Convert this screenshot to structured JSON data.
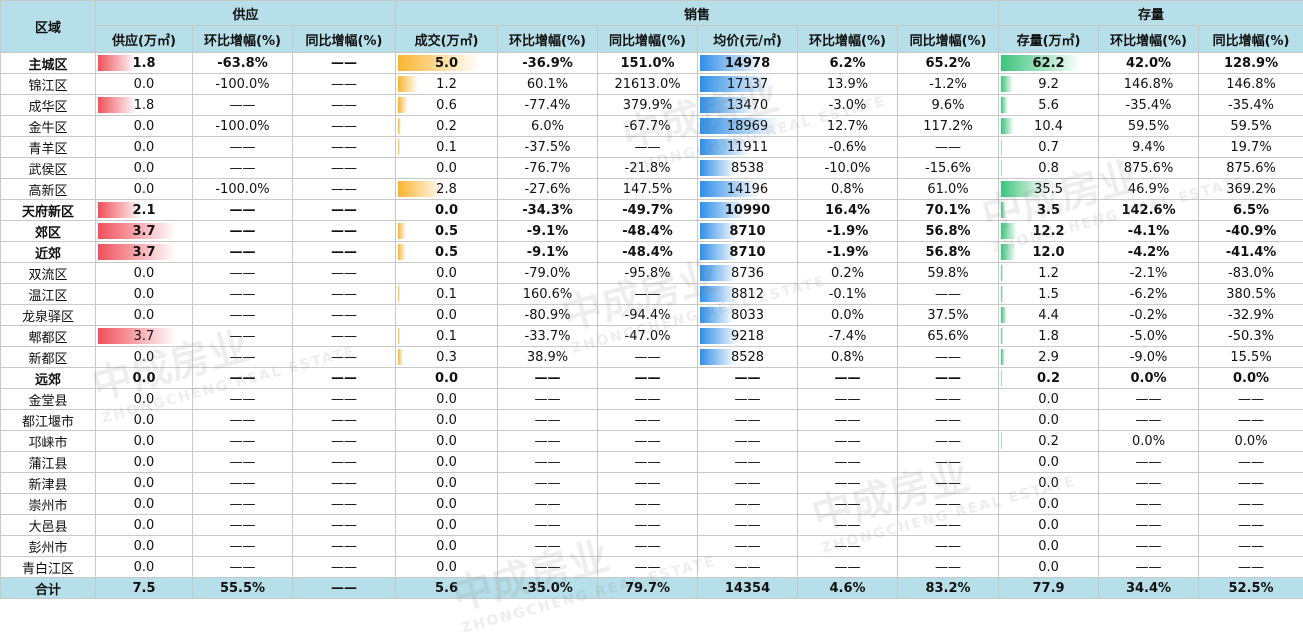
{
  "header": {
    "region": "区域",
    "groups": [
      "供应",
      "销售",
      "存量"
    ],
    "columns": [
      "供应(万㎡)",
      "环比增幅(%)",
      "同比增幅(%)",
      "成交(万㎡)",
      "环比增幅(%)",
      "同比增幅(%)",
      "均价(元/㎡)",
      "环比增幅(%)",
      "同比增幅(%)",
      "存量(万㎡)",
      "环比增幅(%)",
      "同比增幅(%)"
    ]
  },
  "watermark": [
    "中成房业",
    "ZHONGCHENG REAL ESTATE"
  ],
  "data_bars": [
    {
      "column": 1,
      "color": "#f0505a"
    },
    {
      "column": 4,
      "color": "#f9b530"
    },
    {
      "column": 7,
      "color": "#2f8fe8"
    },
    {
      "column": 10,
      "color": "#3cc47c"
    }
  ],
  "rows": [
    {
      "bold": true,
      "cells": [
        "主城区",
        "1.8",
        "-63.8%",
        "——",
        "5.0",
        "-36.9%",
        "151.0%",
        "14978",
        "6.2%",
        "65.2%",
        "62.2",
        "42.0%",
        "128.9%"
      ]
    },
    {
      "cells": [
        "锦江区",
        "0.0",
        "-100.0%",
        "——",
        "1.2",
        "60.1%",
        "21613.0%",
        "17137",
        "13.9%",
        "-1.2%",
        "9.2",
        "146.8%",
        "146.8%"
      ]
    },
    {
      "cells": [
        "成华区",
        "1.8",
        "——",
        "——",
        "0.6",
        "-77.4%",
        "379.9%",
        "13470",
        "-3.0%",
        "9.6%",
        "5.6",
        "-35.4%",
        "-35.4%"
      ]
    },
    {
      "cells": [
        "金牛区",
        "0.0",
        "-100.0%",
        "——",
        "0.2",
        "6.0%",
        "-67.7%",
        "18969",
        "12.7%",
        "117.2%",
        "10.4",
        "59.5%",
        "59.5%"
      ]
    },
    {
      "cells": [
        "青羊区",
        "0.0",
        "——",
        "——",
        "0.1",
        "-37.5%",
        "——",
        "11911",
        "-0.6%",
        "——",
        "0.7",
        "9.4%",
        "19.7%"
      ]
    },
    {
      "cells": [
        "武侯区",
        "0.0",
        "——",
        "——",
        "0.0",
        "-76.7%",
        "-21.8%",
        "8538",
        "-10.0%",
        "-15.6%",
        "0.8",
        "875.6%",
        "875.6%"
      ]
    },
    {
      "cells": [
        "高新区",
        "0.0",
        "-100.0%",
        "——",
        "2.8",
        "-27.6%",
        "147.5%",
        "14196",
        "0.8%",
        "61.0%",
        "35.5",
        "46.9%",
        "369.2%"
      ]
    },
    {
      "bold": true,
      "cells": [
        "天府新区",
        "2.1",
        "——",
        "——",
        "0.0",
        "-34.3%",
        "-49.7%",
        "10990",
        "16.4%",
        "70.1%",
        "3.5",
        "142.6%",
        "6.5%"
      ]
    },
    {
      "bold": true,
      "cells": [
        "郊区",
        "3.7",
        "——",
        "——",
        "0.5",
        "-9.1%",
        "-48.4%",
        "8710",
        "-1.9%",
        "56.8%",
        "12.2",
        "-4.1%",
        "-40.9%"
      ]
    },
    {
      "bold": true,
      "cells": [
        "近郊",
        "3.7",
        "——",
        "——",
        "0.5",
        "-9.1%",
        "-48.4%",
        "8710",
        "-1.9%",
        "56.8%",
        "12.0",
        "-4.2%",
        "-41.4%"
      ]
    },
    {
      "cells": [
        "双流区",
        "0.0",
        "——",
        "——",
        "0.0",
        "-79.0%",
        "-95.8%",
        "8736",
        "0.2%",
        "59.8%",
        "1.2",
        "-2.1%",
        "-83.0%"
      ]
    },
    {
      "cells": [
        "温江区",
        "0.0",
        "——",
        "——",
        "0.1",
        "160.6%",
        "——",
        "8812",
        "-0.1%",
        "——",
        "1.5",
        "-6.2%",
        "380.5%"
      ]
    },
    {
      "cells": [
        "龙泉驿区",
        "0.0",
        "——",
        "——",
        "0.0",
        "-80.9%",
        "-94.4%",
        "8033",
        "0.0%",
        "37.5%",
        "4.4",
        "-0.2%",
        "-32.9%"
      ]
    },
    {
      "cells": [
        "郫都区",
        "3.7",
        "——",
        "——",
        "0.1",
        "-33.7%",
        "-47.0%",
        "9218",
        "-7.4%",
        "65.6%",
        "1.8",
        "-5.0%",
        "-50.3%"
      ]
    },
    {
      "cells": [
        "新都区",
        "0.0",
        "——",
        "——",
        "0.3",
        "38.9%",
        "——",
        "8528",
        "0.8%",
        "——",
        "2.9",
        "-9.0%",
        "15.5%"
      ]
    },
    {
      "bold": true,
      "cells": [
        "远郊",
        "0.0",
        "——",
        "——",
        "0.0",
        "——",
        "——",
        "——",
        "——",
        "——",
        "0.2",
        "0.0%",
        "0.0%"
      ]
    },
    {
      "cells": [
        "金堂县",
        "0.0",
        "——",
        "——",
        "0.0",
        "——",
        "——",
        "——",
        "——",
        "——",
        "0.0",
        "——",
        "——"
      ]
    },
    {
      "cells": [
        "都江堰市",
        "0.0",
        "——",
        "——",
        "0.0",
        "——",
        "——",
        "——",
        "——",
        "——",
        "0.0",
        "——",
        "——"
      ]
    },
    {
      "cells": [
        "邛崃市",
        "0.0",
        "——",
        "——",
        "0.0",
        "——",
        "——",
        "——",
        "——",
        "——",
        "0.2",
        "0.0%",
        "0.0%"
      ]
    },
    {
      "cells": [
        "蒲江县",
        "0.0",
        "——",
        "——",
        "0.0",
        "——",
        "——",
        "——",
        "——",
        "——",
        "0.0",
        "——",
        "——"
      ]
    },
    {
      "cells": [
        "新津县",
        "0.0",
        "——",
        "——",
        "0.0",
        "——",
        "——",
        "——",
        "——",
        "——",
        "0.0",
        "——",
        "——"
      ]
    },
    {
      "cells": [
        "崇州市",
        "0.0",
        "——",
        "——",
        "0.0",
        "——",
        "——",
        "——",
        "——",
        "——",
        "0.0",
        "——",
        "——"
      ]
    },
    {
      "cells": [
        "大邑县",
        "0.0",
        "——",
        "——",
        "0.0",
        "——",
        "——",
        "——",
        "——",
        "——",
        "0.0",
        "——",
        "——"
      ]
    },
    {
      "cells": [
        "彭州市",
        "0.0",
        "——",
        "——",
        "0.0",
        "——",
        "——",
        "——",
        "——",
        "——",
        "0.0",
        "——",
        "——"
      ]
    },
    {
      "cells": [
        "青白江区",
        "0.0",
        "——",
        "——",
        "0.0",
        "——",
        "——",
        "——",
        "——",
        "——",
        "0.0",
        "——",
        "——"
      ]
    },
    {
      "bold": true,
      "total": true,
      "cells": [
        "合计",
        "7.5",
        "55.5%",
        "——",
        "5.6",
        "-35.0%",
        "79.7%",
        "14354",
        "4.6%",
        "83.2%",
        "77.9",
        "34.4%",
        "52.5%"
      ]
    }
  ]
}
